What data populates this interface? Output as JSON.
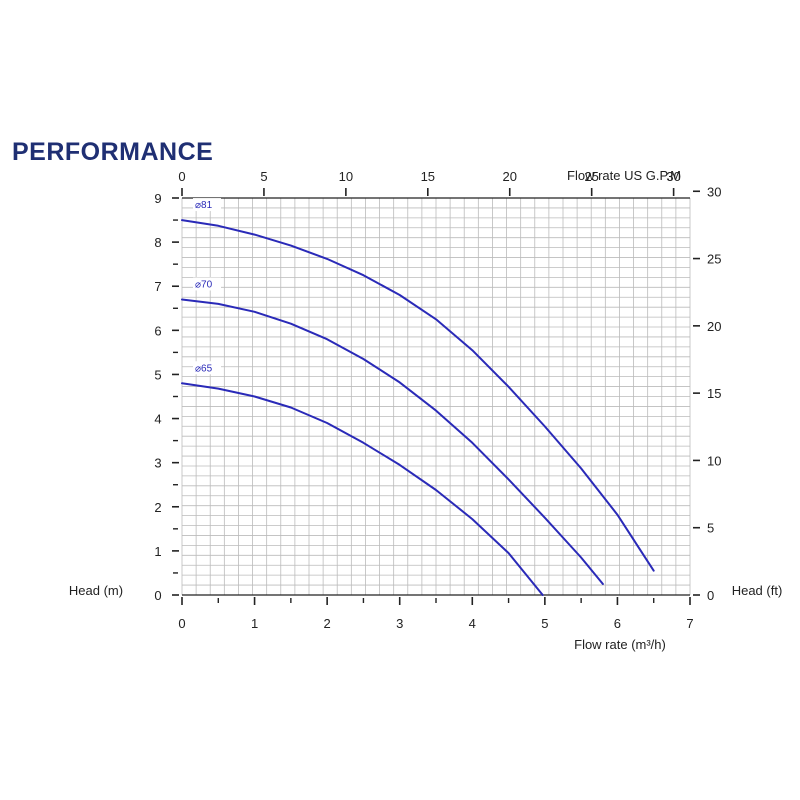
{
  "title": "PERFORMANCE",
  "colors": {
    "title": "#1f2f73",
    "curve": "#2a2ab8",
    "grid": "#bbbbbb",
    "axis": "#222222"
  },
  "chart_data": {
    "type": "line",
    "title": "PERFORMANCE",
    "xlabel": "Flow rate (m³/h)",
    "x2label": "Flow rate US G.P.M",
    "ylabel": "Head (m)",
    "y2label": "Head (ft)",
    "xlim": [
      0,
      7
    ],
    "ylim": [
      0,
      9
    ],
    "x2lim": [
      0,
      31
    ],
    "y2lim": [
      0,
      29.5
    ],
    "x_ticks": [
      0,
      1,
      2,
      3,
      4,
      5,
      6,
      7
    ],
    "y_ticks": [
      0,
      1,
      2,
      3,
      4,
      5,
      6,
      7,
      8,
      9
    ],
    "x2_ticks": [
      0,
      5,
      10,
      15,
      20,
      25,
      30
    ],
    "y2_ticks": [
      0,
      5,
      10,
      15,
      20,
      25,
      30
    ],
    "grid": true,
    "series": [
      {
        "name": "⌀81",
        "x": [
          0,
          0.5,
          1,
          1.5,
          2,
          2.5,
          3,
          3.5,
          4,
          4.5,
          5,
          5.5,
          6,
          6.5
        ],
        "y": [
          8.5,
          8.37,
          8.17,
          7.92,
          7.62,
          7.25,
          6.8,
          6.25,
          5.55,
          4.72,
          3.82,
          2.87,
          1.82,
          0.55
        ]
      },
      {
        "name": "⌀70",
        "x": [
          0,
          0.5,
          1,
          1.5,
          2,
          2.5,
          3,
          3.5,
          4,
          4.5,
          5,
          5.5,
          5.8
        ],
        "y": [
          6.7,
          6.6,
          6.42,
          6.15,
          5.8,
          5.35,
          4.82,
          4.18,
          3.45,
          2.62,
          1.75,
          0.85,
          0.25
        ]
      },
      {
        "name": "⌀65",
        "x": [
          0,
          0.5,
          1,
          1.5,
          2,
          2.5,
          3,
          3.5,
          4,
          4.5,
          4.97
        ],
        "y": [
          4.8,
          4.68,
          4.5,
          4.25,
          3.9,
          3.45,
          2.95,
          2.38,
          1.72,
          0.95,
          0
        ]
      }
    ]
  }
}
